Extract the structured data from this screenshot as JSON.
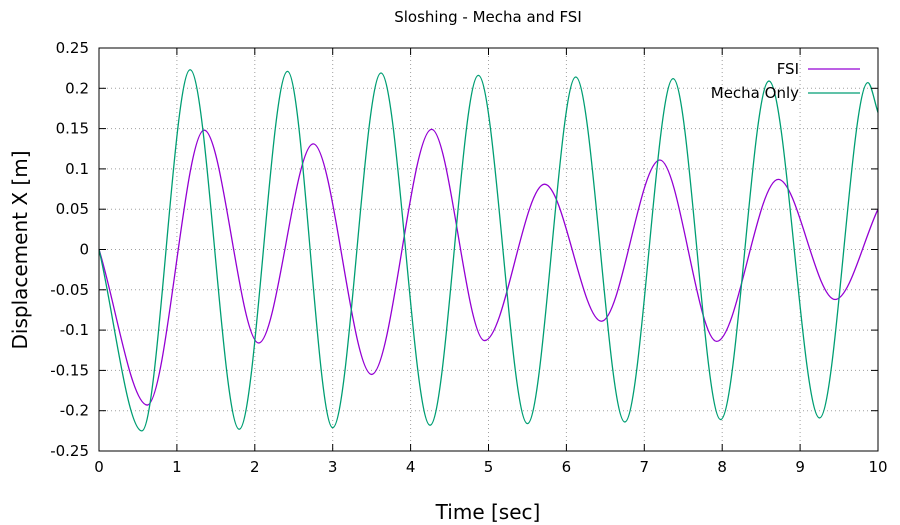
{
  "chart_data": {
    "type": "line",
    "title": "Sloshing - Mecha and FSI",
    "xlabel": "Time [sec]",
    "ylabel": "Displacement X [m]",
    "xlim": [
      0,
      10
    ],
    "ylim": [
      -0.25,
      0.25
    ],
    "x_ticks": [
      0,
      1,
      2,
      3,
      4,
      5,
      6,
      7,
      8,
      9,
      10
    ],
    "x_tick_labels": [
      "0",
      "1",
      "2",
      "3",
      "4",
      "5",
      "6",
      "7",
      "8",
      "9",
      "10"
    ],
    "y_ticks": [
      -0.25,
      -0.2,
      -0.15,
      -0.1,
      -0.05,
      0,
      0.05,
      0.1,
      0.15,
      0.2,
      0.25
    ],
    "y_tick_labels": [
      "-0.25",
      "-0.2",
      "-0.15",
      "-0.1",
      "-0.05",
      "0",
      "0.05",
      "0.1",
      "0.15",
      "0.2",
      "0.25"
    ],
    "grid": true,
    "legend_position": "top-right",
    "series": [
      {
        "name": "FSI",
        "color": "#9400d3",
        "x": [
          0,
          0.62,
          1.35,
          2.05,
          2.75,
          3.5,
          4.27,
          4.95,
          5.72,
          6.45,
          7.2,
          7.93,
          8.72,
          9.45,
          10
        ],
        "y": [
          0,
          -0.193,
          0.148,
          -0.116,
          0.131,
          -0.155,
          0.149,
          -0.113,
          0.081,
          -0.089,
          0.111,
          -0.114,
          0.087,
          -0.062,
          0.05
        ]
      },
      {
        "name": "Mecha Only",
        "color": "#009e73",
        "x": [
          0,
          0.55,
          1.17,
          1.8,
          2.42,
          3.0,
          3.62,
          4.25,
          4.87,
          5.5,
          6.12,
          6.75,
          7.37,
          7.98,
          8.6,
          9.25,
          9.87,
          10
        ],
        "y": [
          0,
          -0.225,
          0.223,
          -0.223,
          0.221,
          -0.221,
          0.219,
          -0.218,
          0.216,
          -0.216,
          0.214,
          -0.214,
          0.212,
          -0.211,
          0.209,
          -0.209,
          0.207,
          0.17
        ]
      }
    ]
  }
}
